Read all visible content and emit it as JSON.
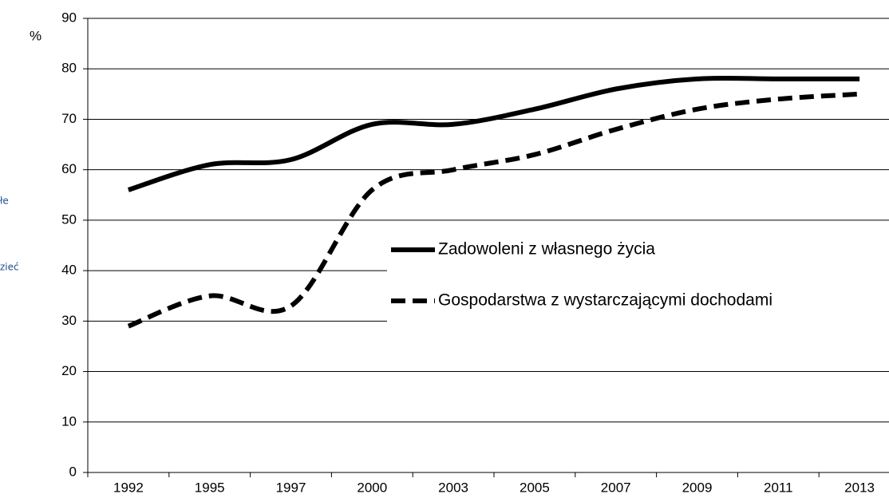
{
  "chart_data": {
    "type": "line",
    "y_label": "%",
    "annotations": [
      "łe",
      "zieć"
    ],
    "categories": [
      "1992",
      "1995",
      "1997",
      "2000",
      "2003",
      "2005",
      "2007",
      "2009",
      "2011",
      "2013"
    ],
    "series": [
      {
        "name": "Zadowoleni z własnego życia",
        "color": "#000000",
        "dash": "solid",
        "values": [
          56,
          61,
          62,
          69,
          69,
          72,
          76,
          78,
          78,
          78
        ]
      },
      {
        "name": "Gospodarstwa z wystarczającymi dochodami",
        "color": "#000000",
        "dash": "dashed",
        "values": [
          29,
          35,
          33,
          56,
          60,
          63,
          68,
          72,
          74,
          75
        ]
      }
    ],
    "ylim": [
      0,
      90
    ],
    "yticks": [
      0,
      10,
      20,
      30,
      40,
      50,
      60,
      70,
      80,
      90
    ],
    "grid": true
  }
}
